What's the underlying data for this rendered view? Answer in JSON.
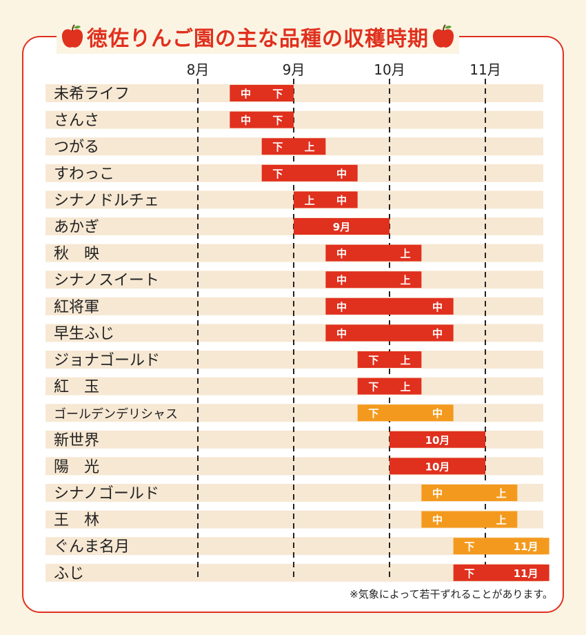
{
  "title": "徳佐りんご園の主な品種の収穫時期",
  "footnote": "※気象によって若干ずれることがあります。",
  "colors": {
    "red": "#e0301e",
    "orange": "#f39a1e",
    "stripe": "#f7e8d3",
    "border": "#e0301e"
  },
  "chart_data": {
    "type": "gantt",
    "x_ticks": [
      "8月",
      "9月",
      "10月",
      "11月"
    ],
    "period_units": "旬 (上=early, 中=mid, 下=late)",
    "rows": [
      {
        "variety": "未希ライフ",
        "start": "8月中",
        "end": "8月下",
        "color": "red",
        "labels": [
          "中",
          "下"
        ]
      },
      {
        "variety": "さんさ",
        "start": "8月中",
        "end": "8月下",
        "color": "red",
        "labels": [
          "中",
          "下"
        ]
      },
      {
        "variety": "つがる",
        "start": "8月下",
        "end": "9月上",
        "color": "red",
        "labels": [
          "下",
          "上"
        ]
      },
      {
        "variety": "すわっこ",
        "start": "8月下",
        "end": "9月中",
        "color": "red",
        "labels": [
          "下",
          "中"
        ]
      },
      {
        "variety": "シナノドルチェ",
        "start": "9月上",
        "end": "9月中",
        "color": "red",
        "labels": [
          "上",
          "中"
        ]
      },
      {
        "variety": "あかぎ",
        "start": "9月上",
        "end": "9月下",
        "color": "red",
        "labels": [
          "9月"
        ]
      },
      {
        "variety": "秋　映",
        "start": "9月中",
        "end": "10月上",
        "color": "red",
        "labels": [
          "中",
          "上"
        ]
      },
      {
        "variety": "シナノスイート",
        "start": "9月中",
        "end": "10月上",
        "color": "red",
        "labels": [
          "中",
          "上"
        ]
      },
      {
        "variety": "紅将軍",
        "start": "9月中",
        "end": "10月中",
        "color": "red",
        "labels": [
          "中",
          "中"
        ]
      },
      {
        "variety": "早生ふじ",
        "start": "9月中",
        "end": "10月中",
        "color": "red",
        "labels": [
          "中",
          "中"
        ]
      },
      {
        "variety": "ジョナゴールド",
        "start": "9月下",
        "end": "10月上",
        "color": "red",
        "labels": [
          "下",
          "上"
        ]
      },
      {
        "variety": "紅　玉",
        "start": "9月下",
        "end": "10月上",
        "color": "red",
        "labels": [
          "下",
          "上"
        ]
      },
      {
        "variety": "ゴールデンデリシャス",
        "start": "9月下",
        "end": "10月中",
        "color": "orange",
        "labels": [
          "下",
          "中"
        ]
      },
      {
        "variety": "新世界",
        "start": "10月上",
        "end": "10月下",
        "color": "red",
        "labels": [
          "10月"
        ]
      },
      {
        "variety": "陽　光",
        "start": "10月上",
        "end": "10月下",
        "color": "red",
        "labels": [
          "10月"
        ]
      },
      {
        "variety": "シナノゴールド",
        "start": "10月中",
        "end": "11月上",
        "color": "orange",
        "labels": [
          "中",
          "上"
        ]
      },
      {
        "variety": "王　林",
        "start": "10月中",
        "end": "11月上",
        "color": "orange",
        "labels": [
          "中",
          "上"
        ]
      },
      {
        "variety": "ぐんま名月",
        "start": "10月下",
        "end": "11月中",
        "color": "orange",
        "labels": [
          "下",
          "11月"
        ]
      },
      {
        "variety": "ふじ",
        "start": "10月下",
        "end": "11月中",
        "color": "red",
        "labels": [
          "下",
          "11月"
        ]
      }
    ]
  }
}
